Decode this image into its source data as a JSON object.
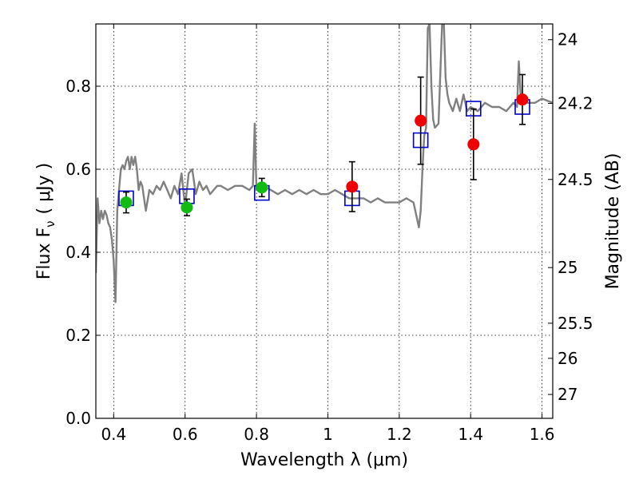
{
  "chart_data": {
    "type": "scatter",
    "title": "",
    "xlabel": "Wavelength  λ (μm)",
    "ylabel": "Flux  F",
    "ylabel_sub": "ν",
    "ylabel_unit": "( μJy )",
    "y2label": "Magnitude (AB)",
    "xlim": [
      0.35,
      1.63
    ],
    "ylim": [
      0.0,
      0.95
    ],
    "xticks": [
      0.4,
      0.6,
      0.8,
      1.0,
      1.2,
      1.4,
      1.6
    ],
    "xtick_labels": [
      "0.4",
      "0.6",
      "0.8",
      "1",
      "1.2",
      "1.4",
      "1.6"
    ],
    "yticks": [
      0.0,
      0.2,
      0.4,
      0.6,
      0.8
    ],
    "ytick_labels": [
      "0.0",
      "0.2",
      "0.4",
      "0.6",
      "0.8"
    ],
    "y2ticks": [
      {
        "label": "24",
        "mag": 24.0
      },
      {
        "label": "24.2",
        "mag": 24.2
      },
      {
        "label": "24.5",
        "mag": 24.5
      },
      {
        "label": "25",
        "mag": 25.0
      },
      {
        "label": "25.5",
        "mag": 25.5
      },
      {
        "label": "26",
        "mag": 26.0
      },
      {
        "label": "27",
        "mag": 27.0
      }
    ],
    "grid": true,
    "colors": {
      "sed": "#808080",
      "green_points": "#11bb11",
      "red_points": "#ee0000",
      "model_squares": "#0000cc",
      "error_bars": "#000000"
    },
    "series": [
      {
        "name": "model SED",
        "kind": "line",
        "x": [
          0.35,
          0.355,
          0.36,
          0.365,
          0.37,
          0.375,
          0.38,
          0.385,
          0.39,
          0.395,
          0.4,
          0.405,
          0.41,
          0.415,
          0.42,
          0.425,
          0.43,
          0.435,
          0.44,
          0.445,
          0.45,
          0.455,
          0.46,
          0.465,
          0.47,
          0.475,
          0.48,
          0.49,
          0.5,
          0.51,
          0.52,
          0.53,
          0.54,
          0.55,
          0.56,
          0.57,
          0.58,
          0.59,
          0.6,
          0.61,
          0.62,
          0.63,
          0.64,
          0.65,
          0.66,
          0.67,
          0.68,
          0.69,
          0.7,
          0.72,
          0.74,
          0.76,
          0.78,
          0.79,
          0.795,
          0.8,
          0.805,
          0.81,
          0.82,
          0.84,
          0.86,
          0.88,
          0.9,
          0.92,
          0.94,
          0.96,
          0.98,
          1.0,
          1.02,
          1.04,
          1.06,
          1.08,
          1.1,
          1.12,
          1.14,
          1.16,
          1.18,
          1.2,
          1.22,
          1.24,
          1.25,
          1.255,
          1.26,
          1.265,
          1.27,
          1.275,
          1.28,
          1.285,
          1.29,
          1.295,
          1.3,
          1.31,
          1.32,
          1.325,
          1.33,
          1.335,
          1.34,
          1.35,
          1.36,
          1.37,
          1.38,
          1.39,
          1.4,
          1.42,
          1.44,
          1.46,
          1.48,
          1.5,
          1.52,
          1.53,
          1.535,
          1.54,
          1.545,
          1.55,
          1.56,
          1.58,
          1.6,
          1.63
        ],
        "y": [
          0.35,
          0.53,
          0.47,
          0.5,
          0.48,
          0.5,
          0.49,
          0.47,
          0.46,
          0.43,
          0.38,
          0.28,
          0.5,
          0.55,
          0.6,
          0.61,
          0.6,
          0.62,
          0.63,
          0.6,
          0.63,
          0.61,
          0.63,
          0.6,
          0.55,
          0.57,
          0.56,
          0.5,
          0.55,
          0.54,
          0.56,
          0.55,
          0.57,
          0.55,
          0.53,
          0.56,
          0.54,
          0.59,
          0.51,
          0.59,
          0.6,
          0.54,
          0.57,
          0.55,
          0.56,
          0.54,
          0.55,
          0.56,
          0.56,
          0.55,
          0.56,
          0.56,
          0.55,
          0.56,
          0.71,
          0.55,
          0.56,
          0.55,
          0.56,
          0.55,
          0.54,
          0.55,
          0.54,
          0.55,
          0.54,
          0.55,
          0.54,
          0.54,
          0.55,
          0.54,
          0.53,
          0.53,
          0.53,
          0.52,
          0.53,
          0.52,
          0.52,
          0.52,
          0.53,
          0.52,
          0.48,
          0.46,
          0.5,
          0.6,
          0.68,
          0.7,
          0.94,
          0.95,
          0.8,
          0.72,
          0.7,
          0.71,
          0.95,
          0.95,
          0.82,
          0.78,
          0.76,
          0.74,
          0.77,
          0.74,
          0.78,
          0.74,
          0.75,
          0.74,
          0.76,
          0.75,
          0.75,
          0.74,
          0.76,
          0.75,
          0.86,
          0.78,
          0.76,
          0.77,
          0.76,
          0.76,
          0.77,
          0.76
        ]
      },
      {
        "name": "green photometry",
        "kind": "points",
        "x": [
          0.435,
          0.605,
          0.815
        ],
        "y": [
          0.52,
          0.508,
          0.556
        ],
        "yerr": [
          0.025,
          0.02,
          0.022
        ]
      },
      {
        "name": "red photometry",
        "kind": "points",
        "x": [
          1.068,
          1.26,
          1.408,
          1.545
        ],
        "y": [
          0.558,
          0.717,
          0.66,
          0.768
        ],
        "yerr": [
          0.06,
          0.105,
          0.085,
          0.06
        ]
      },
      {
        "name": "model photometry",
        "kind": "squares",
        "x": [
          0.435,
          0.605,
          0.815,
          1.068,
          1.26,
          1.408,
          1.545
        ],
        "y": [
          0.53,
          0.535,
          0.543,
          0.53,
          0.67,
          0.746,
          0.75
        ]
      }
    ]
  }
}
